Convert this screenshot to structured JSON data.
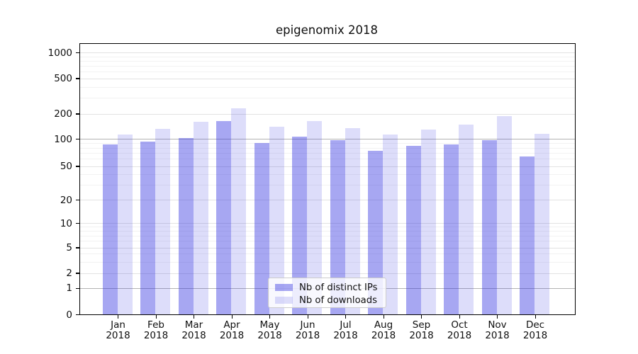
{
  "title": "epigenomix 2018",
  "chart_data": {
    "type": "bar",
    "title": "epigenomix 2018",
    "categories": [
      "Jan 2018",
      "Feb 2018",
      "Mar 2018",
      "Apr 2018",
      "May 2018",
      "Jun 2018",
      "Jul 2018",
      "Aug 2018",
      "Sep 2018",
      "Oct 2018",
      "Nov 2018",
      "Dec 2018"
    ],
    "months": [
      "Jan",
      "Feb",
      "Mar",
      "Apr",
      "May",
      "Jun",
      "Jul",
      "Aug",
      "Sep",
      "Oct",
      "Nov",
      "Dec"
    ],
    "year_label": "2018",
    "series": [
      {
        "name": "Nb of distinct IPs",
        "color": "rgba(45,45,225,0.42)",
        "solid_color": "#a6a6f0",
        "values": [
          88,
          94,
          103,
          165,
          91,
          107,
          98,
          75,
          84,
          88,
          98,
          65
        ]
      },
      {
        "name": "Nb of downloads",
        "color": "rgba(45,45,225,0.16)",
        "solid_color": "#dcdcf8",
        "values": [
          115,
          132,
          160,
          232,
          140,
          166,
          135,
          113,
          131,
          150,
          190,
          117
        ]
      }
    ],
    "yscale": "symlog",
    "yticks": [
      0,
      1,
      2,
      5,
      10,
      20,
      50,
      100,
      200,
      500,
      1000
    ],
    "ylim": [
      0,
      1400
    ],
    "grid": true,
    "grid_major_values": [
      1,
      100
    ],
    "grid_major_color": "#b3b3b3",
    "grid_labeled_color": "#e2e2e2",
    "grid_minor_color": "#f2f2f2",
    "legend": {
      "position": "lower center",
      "labels": [
        "Nb of distinct IPs",
        "Nb of downloads"
      ]
    },
    "xlabel": "",
    "ylabel": ""
  }
}
